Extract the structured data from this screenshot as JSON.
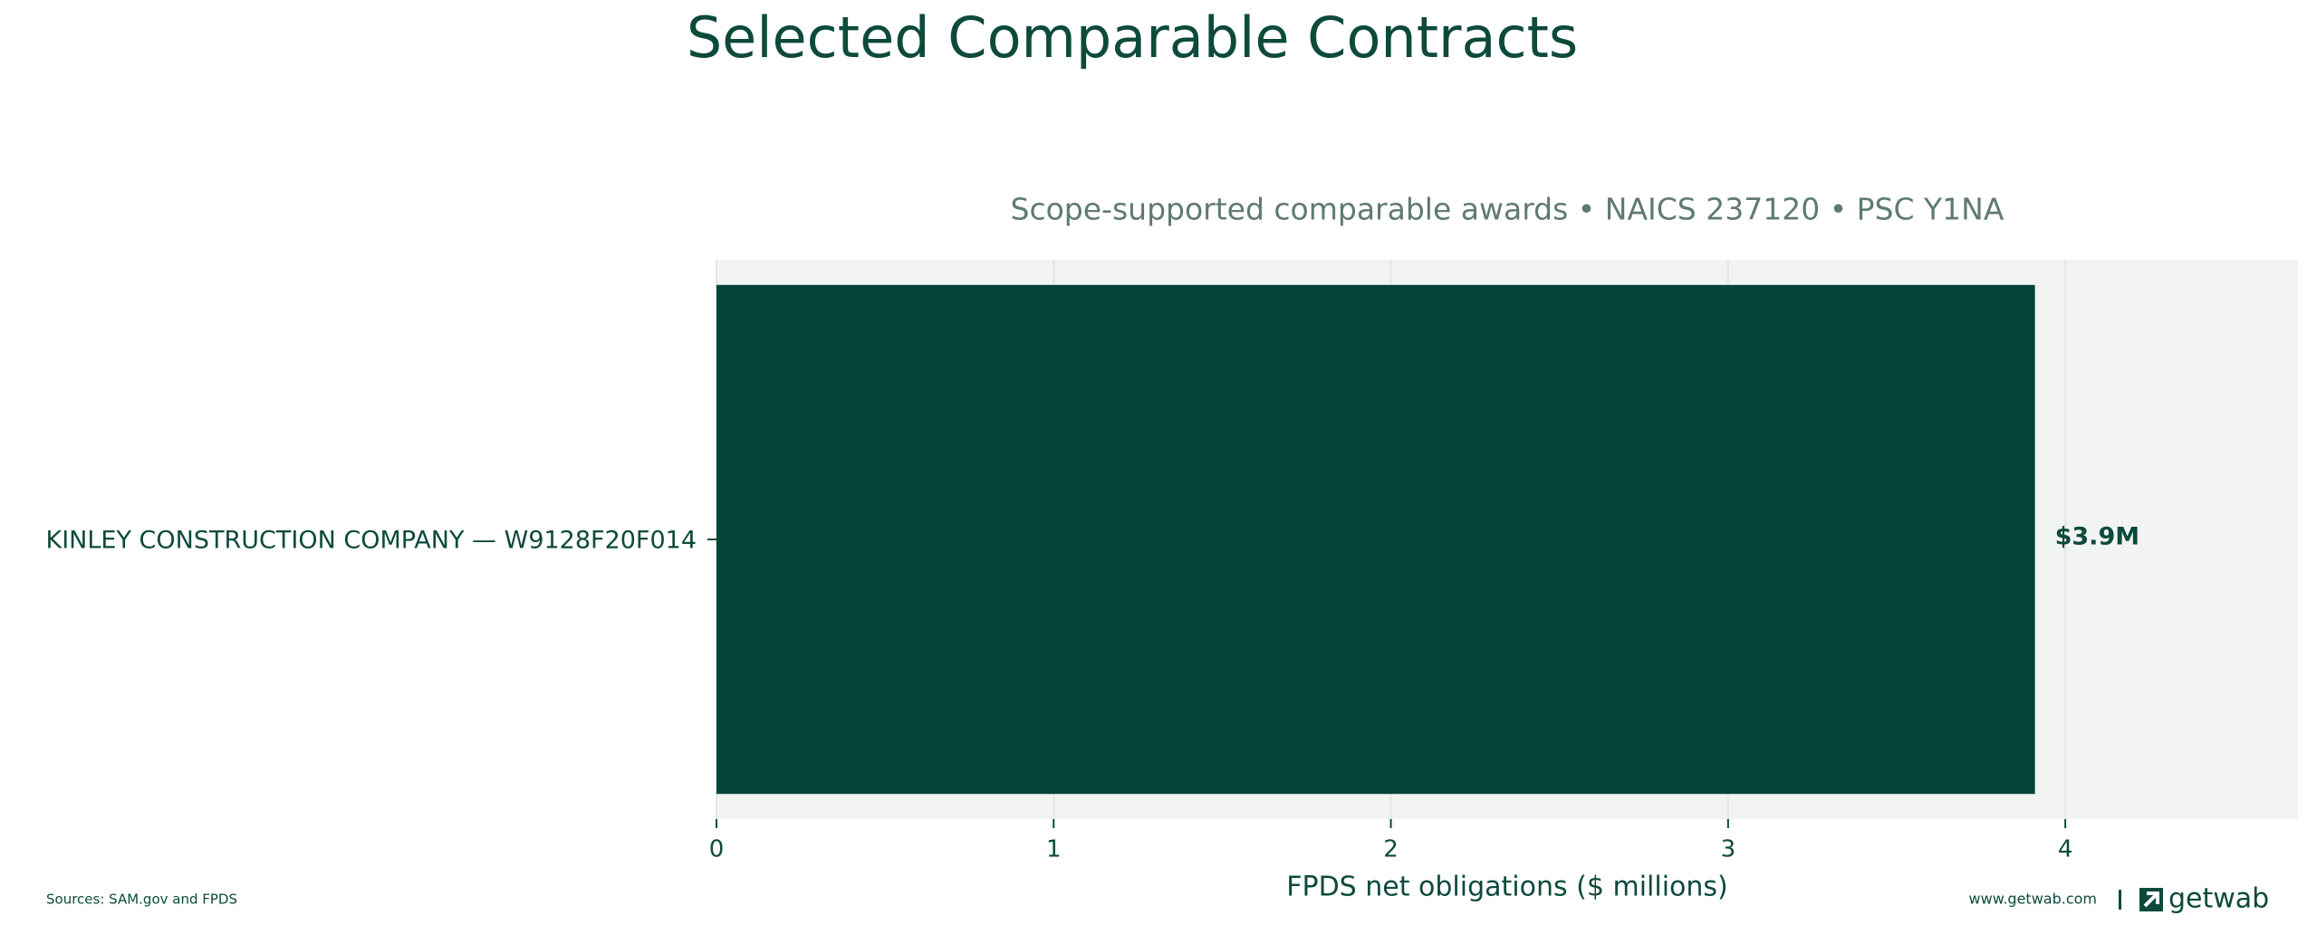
{
  "chart_data": {
    "type": "barh",
    "title": "Selected Comparable Contracts",
    "subtitle": "Scope-supported comparable awards • NAICS 237120 • PSC Y1NA",
    "x_label": "FPDS net obligations ($ millions)",
    "categories": [
      "KINLEY CONSTRUCTION COMPANY — W9128F20F014"
    ],
    "values": [
      3.91
    ],
    "value_labels": [
      "$3.9M"
    ],
    "color": "#03443a",
    "xlim": [
      0,
      4.69
    ],
    "xticks": [
      0,
      1,
      2,
      3,
      4
    ],
    "grid": true,
    "source": "Sources: SAM.gov and FPDS",
    "website": "www.getwab.com",
    "brand": "getwab"
  }
}
